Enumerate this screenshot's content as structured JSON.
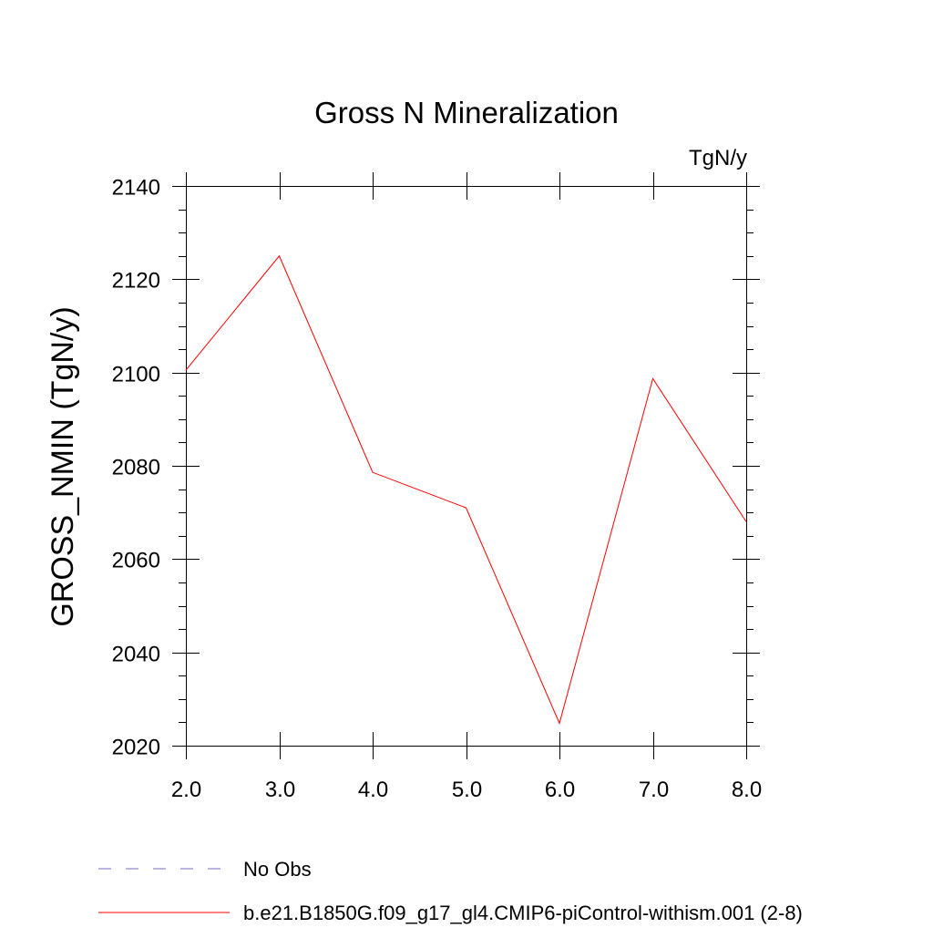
{
  "chart_data": {
    "type": "line",
    "title": "Gross N Mineralization",
    "units_label": "TgN/y",
    "ylabel": "GROSS_NMIN  (TgN/y)",
    "xlabel": "",
    "xlim": [
      2.0,
      8.0
    ],
    "ylim": [
      2020,
      2140
    ],
    "x_ticks": [
      2.0,
      3.0,
      4.0,
      5.0,
      6.0,
      7.0,
      8.0
    ],
    "x_tick_labels": [
      "2.0",
      "3.0",
      "4.0",
      "5.0",
      "6.0",
      "7.0",
      "8.0"
    ],
    "x_minor_ticks": [],
    "y_ticks": [
      2020,
      2040,
      2060,
      2080,
      2100,
      2120,
      2140
    ],
    "y_tick_labels": [
      "2020",
      "2040",
      "2060",
      "2080",
      "2100",
      "2120",
      "2140"
    ],
    "y_minor_ticks": [
      2025,
      2030,
      2035,
      2045,
      2050,
      2055,
      2065,
      2070,
      2075,
      2085,
      2090,
      2095,
      2105,
      2110,
      2115,
      2125,
      2130,
      2135
    ],
    "grid": false,
    "legend_position": "bottom-left",
    "series": [
      {
        "name": "b.e21.B1850G.f09_g17_gl4.CMIP6-piControl-withism.001 (2-8)",
        "color": "#ff0000",
        "style": "solid",
        "x": [
          2.0,
          3.0,
          4.0,
          5.0,
          6.0,
          7.0,
          8.0
        ],
        "values": [
          2100.5,
          2125.0,
          2078.6,
          2071.0,
          2024.8,
          2098.7,
          2068.0
        ]
      }
    ],
    "legend": [
      {
        "label": "No Obs",
        "color": "#7b68c8",
        "style": "dashed"
      },
      {
        "label": "b.e21.B1850G.f09_g17_gl4.CMIP6-piControl-withism.001 (2-8)",
        "color": "#ff0000",
        "style": "solid"
      }
    ]
  }
}
